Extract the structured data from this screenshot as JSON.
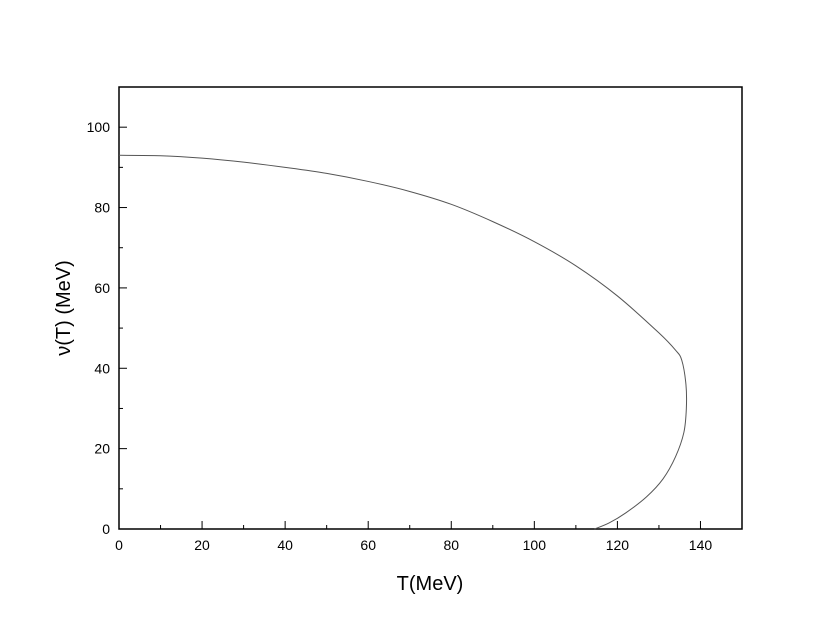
{
  "chart_data": {
    "type": "line",
    "title": "",
    "xlabel": "T(MeV)",
    "ylabel": "ν(T) (MeV)",
    "xlim": [
      0,
      150
    ],
    "ylim": [
      0,
      110
    ],
    "x_ticks": [
      "0",
      "20",
      "40",
      "60",
      "80",
      "100",
      "120",
      "140"
    ],
    "y_ticks": [
      "0",
      "20",
      "40",
      "60",
      "80",
      "100"
    ],
    "grid": false,
    "legend": "none",
    "series": [
      {
        "color": "#555555",
        "points": [
          [
            0,
            93.0
          ],
          [
            10,
            92.9
          ],
          [
            20,
            92.3
          ],
          [
            30,
            91.3
          ],
          [
            40,
            90.0
          ],
          [
            50,
            88.5
          ],
          [
            60,
            86.5
          ],
          [
            70,
            84.0
          ],
          [
            80,
            80.8
          ],
          [
            90,
            76.5
          ],
          [
            100,
            71.5
          ],
          [
            110,
            65.5
          ],
          [
            120,
            58.0
          ],
          [
            130,
            48.8
          ],
          [
            134,
            44.5
          ],
          [
            135.5,
            42.0
          ],
          [
            136.5,
            36.0
          ],
          [
            136.6,
            30.0
          ],
          [
            136,
            24.0
          ],
          [
            134,
            18.0
          ],
          [
            131,
            12.5
          ],
          [
            127,
            8.0
          ],
          [
            122,
            4.0
          ],
          [
            118,
            1.5
          ],
          [
            114.5,
            0
          ]
        ]
      }
    ]
  }
}
